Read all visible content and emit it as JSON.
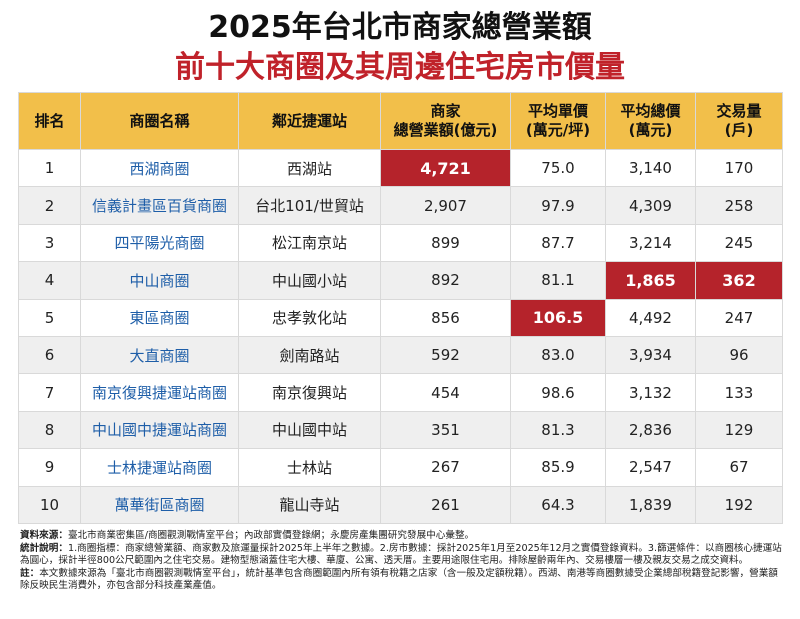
{
  "header": {
    "title": "2025年台北市商家總營業額",
    "subtitle": "前十大商圈及其周邊住宅房市價量"
  },
  "table": {
    "columns": [
      [
        "排名"
      ],
      [
        "商圈名稱"
      ],
      [
        "鄰近捷運站"
      ],
      [
        "商家",
        "總營業額(億元)"
      ],
      [
        "平均單價",
        "(萬元/坪)"
      ],
      [
        "平均總價",
        "(萬元)"
      ],
      [
        "交易量",
        "(戶)"
      ]
    ],
    "rows": [
      [
        "1",
        "西湖商圈",
        "西湖站",
        "4,721",
        "75.0",
        "3,140",
        "170"
      ],
      [
        "2",
        "信義計畫區百貨商圈",
        "台北101/世貿站",
        "2,907",
        "97.9",
        "4,309",
        "258"
      ],
      [
        "3",
        "四平陽光商圈",
        "松江南京站",
        "899",
        "87.7",
        "3,214",
        "245"
      ],
      [
        "4",
        "中山商圈",
        "中山國小站",
        "892",
        "81.1",
        "1,865",
        "362"
      ],
      [
        "5",
        "東區商圈",
        "忠孝敦化站",
        "856",
        "106.5",
        "4,492",
        "247"
      ],
      [
        "6",
        "大直商圈",
        "劍南路站",
        "592",
        "83.0",
        "3,934",
        "96"
      ],
      [
        "7",
        "南京復興捷運站商圈",
        "南京復興站",
        "454",
        "98.6",
        "3,132",
        "133"
      ],
      [
        "8",
        "中山國中捷運站商圈",
        "中山國中站",
        "351",
        "81.3",
        "2,836",
        "129"
      ],
      [
        "9",
        "士林捷運站商圈",
        "士林站",
        "267",
        "85.9",
        "2,547",
        "67"
      ],
      [
        "10",
        "萬華街區商圈",
        "龍山寺站",
        "261",
        "64.3",
        "1,839",
        "192"
      ]
    ]
  },
  "notes": [
    {
      "label": "資料來源：",
      "text": "臺北市商業密集區/商圈觀測戰情室平台；內政部實價登錄網；永慶房產集團研究發展中心彙整。"
    },
    {
      "label": "統計說明：",
      "text": "1.商圈指標：商家總營業額、商家數及旅運量採計2025年上半年之數據。2.房市數據：採計2025年1月至2025年12月之實價登錄資料。3.篩選條件：以商圈核心捷運站為圓心，採計半徑800公尺範圍內之住宅交易。建物型態涵蓋住宅大樓、華廈、公寓、透天厝。主要用途限住宅用。排除屋齡兩年內、交易樓層一樓及親友交易之成交資料。"
    },
    {
      "label": "註：",
      "text": "本文數據來源為「臺北市商圈觀測戰情室平台」，統計基準包含商圈範圍內所有領有稅籍之店家（含一般及定額稅籍）。西湖、南港等商圈數據受企業總部稅籍登記影響，營業額除反映民生消費外，亦包含部分科技產業產值。"
    }
  ]
}
